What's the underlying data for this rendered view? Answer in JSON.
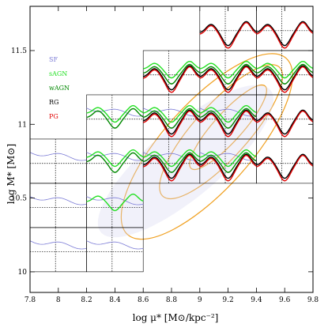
{
  "chart_data": {
    "type": "line",
    "description_xlabel": "log μ* [M⊙/kpc⁻²]",
    "xlabel": "log μ* [M⊙/kpc⁻²]",
    "ylabel": "log M* [M⊙]",
    "xlim": [
      7.8,
      9.8
    ],
    "ylim": [
      9.86,
      11.8
    ],
    "x_ticks": [
      "7.8",
      "8",
      "8.2",
      "8.4",
      "8.6",
      "8.8",
      "9",
      "9.2",
      "9.4",
      "9.6",
      "9.8"
    ],
    "y_ticks": [
      "10",
      "10.5",
      "11",
      "11.5"
    ],
    "legend_position": "top-left",
    "grid": false,
    "series": [
      {
        "name": "SF",
        "color": "#7b7bd6"
      },
      {
        "name": "sAGN",
        "color": "#22e022"
      },
      {
        "name": "wAGN",
        "color": "#008800"
      },
      {
        "name": "RG",
        "color": "#000000"
      },
      {
        "name": "PG",
        "color": "#e00000"
      }
    ],
    "contour_color": "#f0a020",
    "panel_cell_size": {
      "dx": 0.4,
      "dy": 0.3
    },
    "panels": [
      {
        "x0": 9.0,
        "y0": 11.5,
        "series": [
          "RG",
          "PG"
        ]
      },
      {
        "x0": 9.4,
        "y0": 11.5,
        "series": [
          "RG",
          "PG"
        ]
      },
      {
        "x0": 8.6,
        "y0": 11.2,
        "series": [
          "sAGN",
          "wAGN",
          "RG",
          "PG"
        ]
      },
      {
        "x0": 9.0,
        "y0": 11.2,
        "series": [
          "sAGN",
          "wAGN",
          "RG",
          "PG"
        ]
      },
      {
        "x0": 9.4,
        "y0": 11.2,
        "series": [
          "sAGN",
          "wAGN",
          "RG",
          "PG"
        ]
      },
      {
        "x0": 8.2,
        "y0": 10.9,
        "series": [
          "SF",
          "sAGN",
          "wAGN"
        ]
      },
      {
        "x0": 8.6,
        "y0": 10.9,
        "series": [
          "SF",
          "sAGN",
          "wAGN",
          "RG",
          "PG"
        ]
      },
      {
        "x0": 9.0,
        "y0": 10.9,
        "series": [
          "SF",
          "sAGN",
          "wAGN",
          "RG",
          "PG"
        ]
      },
      {
        "x0": 9.4,
        "y0": 10.9,
        "series": [
          "RG",
          "PG"
        ]
      },
      {
        "x0": 7.8,
        "y0": 10.6,
        "series": [
          "SF"
        ]
      },
      {
        "x0": 8.2,
        "y0": 10.6,
        "series": [
          "SF",
          "sAGN",
          "wAGN"
        ]
      },
      {
        "x0": 8.6,
        "y0": 10.6,
        "series": [
          "SF",
          "sAGN",
          "wAGN",
          "RG",
          "PG"
        ]
      },
      {
        "x0": 9.0,
        "y0": 10.6,
        "series": [
          "SF",
          "sAGN",
          "wAGN",
          "RG",
          "PG"
        ]
      },
      {
        "x0": 9.4,
        "y0": 10.6,
        "series": [
          "RG",
          "PG"
        ]
      },
      {
        "x0": 7.8,
        "y0": 10.3,
        "series": [
          "SF"
        ]
      },
      {
        "x0": 8.2,
        "y0": 10.3,
        "series": [
          "SF",
          "sAGN"
        ]
      },
      {
        "x0": 7.8,
        "y0": 10.0,
        "series": [
          "SF"
        ]
      },
      {
        "x0": 8.2,
        "y0": 10.0,
        "series": [
          "SF"
        ]
      }
    ]
  }
}
